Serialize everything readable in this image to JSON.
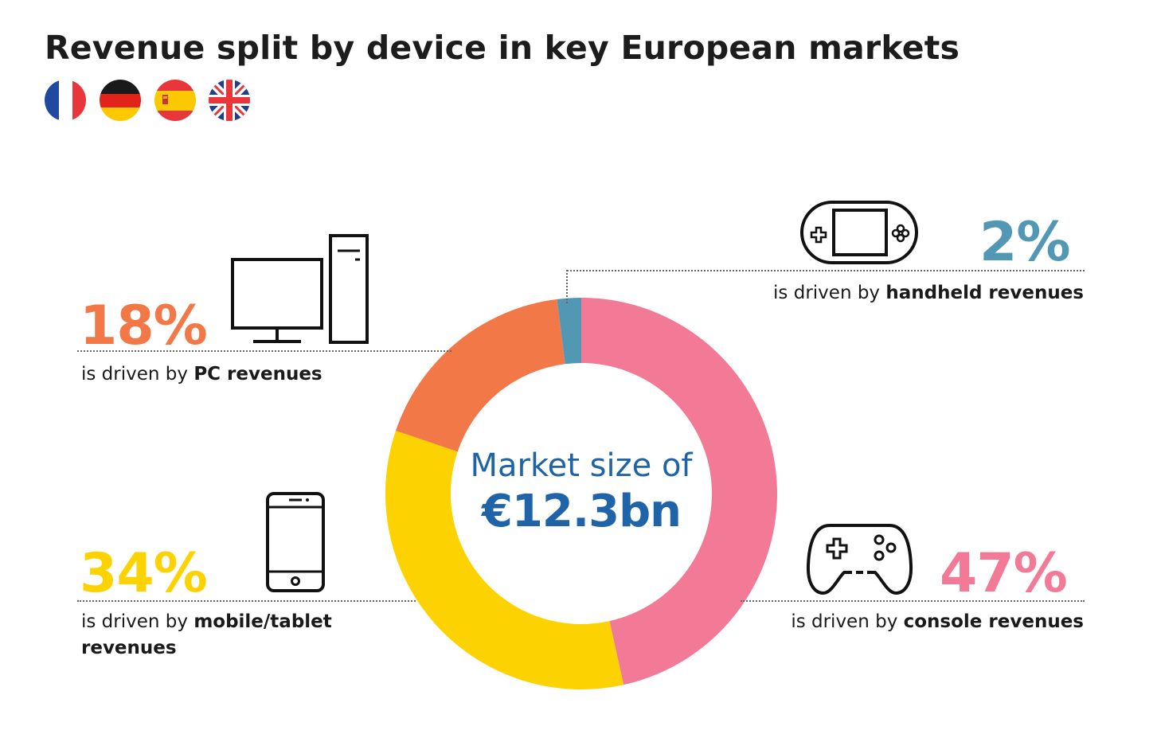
{
  "title": "Revenue split by device in key European markets",
  "flags": {
    "france": "france-flag-icon",
    "germany": "germany-flag-icon",
    "spain": "spain-flag-icon",
    "uk": "uk-flag-icon"
  },
  "colors": {
    "console": "#f27a96",
    "mobile": "#fcd200",
    "pc": "#f27848",
    "handheld": "#5298b5",
    "center_text": "#1f63a8"
  },
  "center": {
    "line1": "Market size of",
    "line2": "€12.3bn"
  },
  "segments": {
    "pc": {
      "pct": "18%",
      "prefix": "is driven by ",
      "bold": "PC revenues"
    },
    "handheld": {
      "pct": "2%",
      "prefix": "is driven by ",
      "bold": "handheld revenues"
    },
    "mobile": {
      "pct": "34%",
      "prefix": "is driven by ",
      "bold": "mobile/tablet",
      "bold2": "revenues"
    },
    "console": {
      "pct": "47%",
      "prefix": "is driven by ",
      "bold": "console revenues"
    }
  },
  "chart_data": {
    "type": "pie",
    "categories": [
      "console",
      "mobile/tablet",
      "PC",
      "handheld"
    ],
    "values": [
      47,
      34,
      18,
      2
    ],
    "unit": "%"
  }
}
